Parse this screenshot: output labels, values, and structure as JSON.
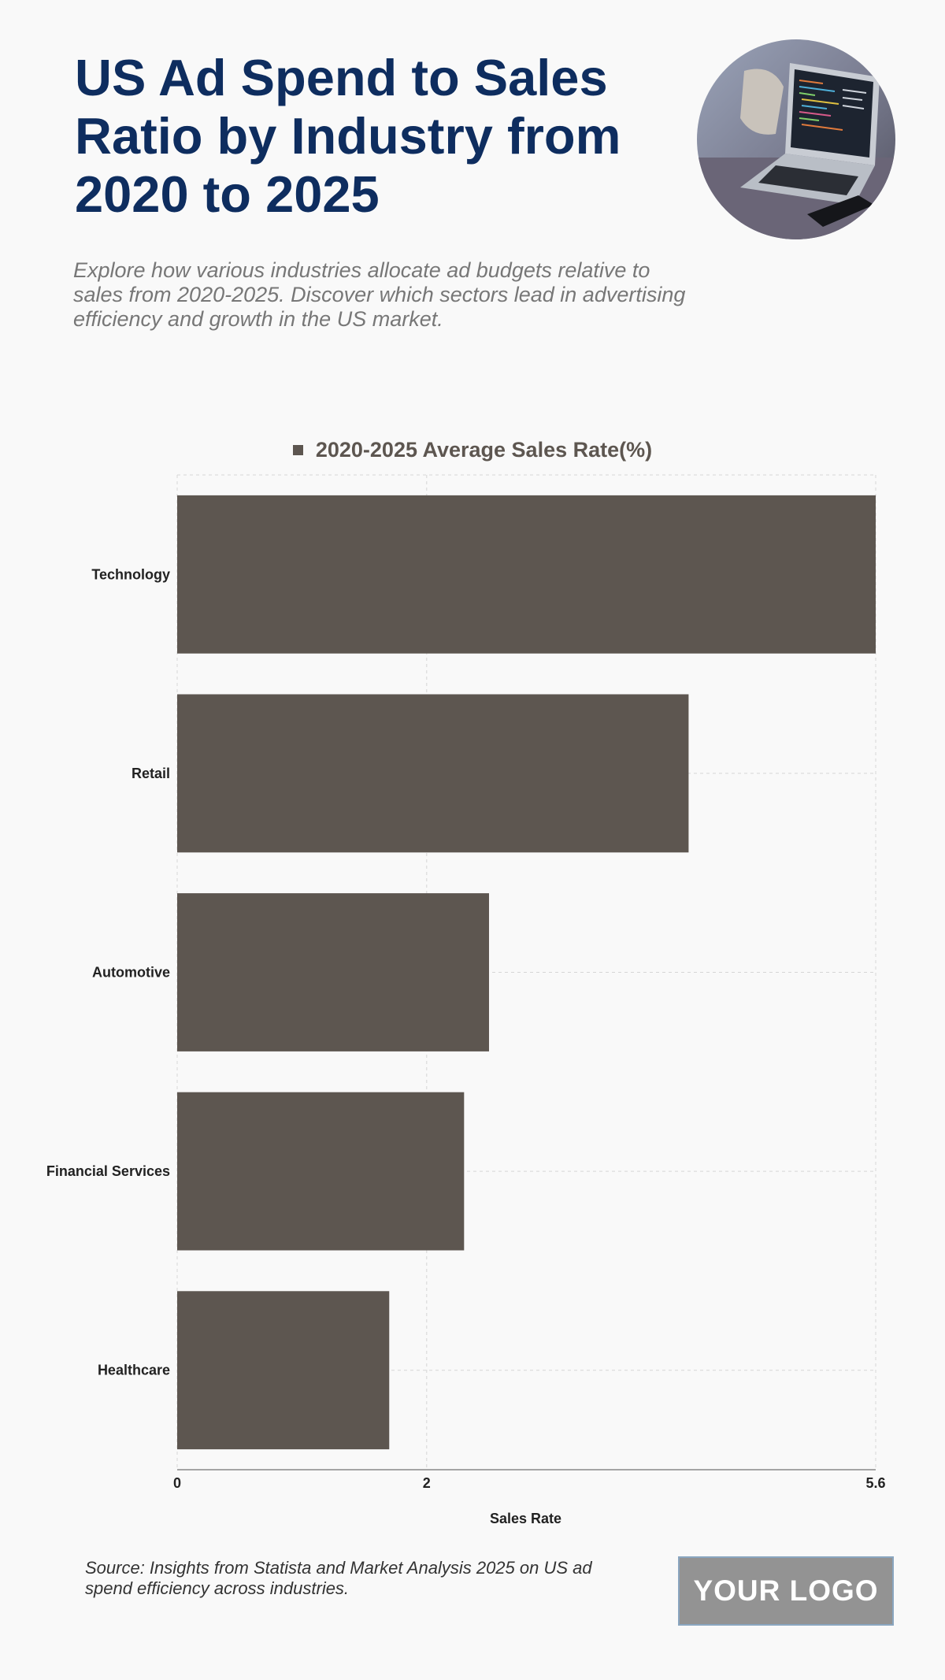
{
  "header": {
    "title": "US Ad Spend to Sales Ratio by Industry from 2020 to 2025",
    "subtitle": "Explore how various industries allocate ad budgets relative to sales from 2020-2025. Discover which sectors lead in advertising efficiency and growth in the US market."
  },
  "colors": {
    "title": "#0e2d5f",
    "bar": "#5d5650",
    "grid": "#d6d6d6"
  },
  "chart_data": {
    "type": "bar",
    "orientation": "horizontal",
    "categories": [
      "Technology",
      "Retail",
      "Automotive",
      "Financial Services",
      "Healthcare"
    ],
    "series": [
      {
        "name": "2020-2025 Average Sales Rate(%)",
        "values": [
          5.6,
          4.1,
          2.5,
          2.3,
          1.7
        ]
      }
    ],
    "xlabel": "Sales Rate",
    "xlim": [
      0,
      5.6
    ],
    "xticks": [
      0,
      2,
      5.6
    ],
    "grid": true,
    "legend": "top-center"
  },
  "footer": {
    "source": "Source: Insights from Statista and Market Analysis 2025 on US ad spend efficiency across industries.",
    "logo_text": "YOUR LOGO"
  },
  "icons": {
    "hero": "laptop-photo"
  }
}
